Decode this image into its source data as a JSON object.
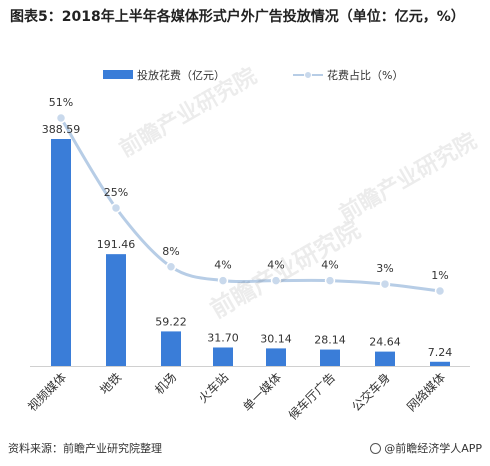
{
  "title": "图表5：2018年上半年各媒体形式户外广告投放情况（单位：亿元，%）",
  "watermark_text": "前瞻产业研究院",
  "footer": {
    "source": "资料来源：前瞻产业研究院整理",
    "brand": "@前瞻经济学人APP"
  },
  "colors": {
    "bar": "#3a7dd8",
    "line": "#b7cde6",
    "marker": "#c9d9ec"
  },
  "chart_data": {
    "type": "bar",
    "categories": [
      "视频媒体",
      "地铁",
      "机场",
      "火车站",
      "单一媒体",
      "候车厅广告",
      "公交车身",
      "网络媒体"
    ],
    "series": [
      {
        "name": "投放花费（亿元）",
        "type": "bar",
        "values": [
          388.59,
          191.46,
          59.22,
          31.7,
          30.14,
          28.14,
          24.64,
          7.24
        ],
        "labels": [
          "388.59",
          "191.46",
          "59.22",
          "31.70",
          "30.14",
          "28.14",
          "24.64",
          "7.24"
        ]
      },
      {
        "name": "花费占比（%）",
        "type": "line",
        "values": [
          51,
          25,
          8,
          4,
          4,
          4,
          3,
          1
        ],
        "labels": [
          "51%",
          "25%",
          "8%",
          "4%",
          "4%",
          "4%",
          "3%",
          "1%"
        ]
      }
    ],
    "legend_position": "top",
    "grid": false
  }
}
